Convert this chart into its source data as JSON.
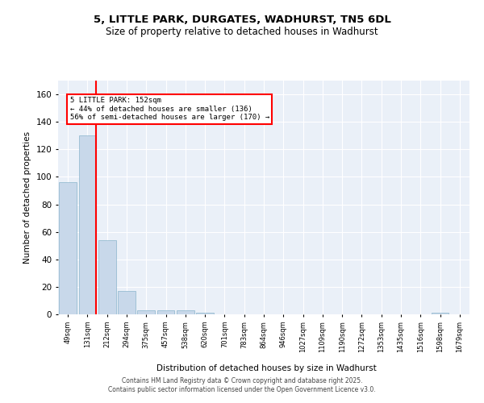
{
  "title_line1": "5, LITTLE PARK, DURGATES, WADHURST, TN5 6DL",
  "title_line2": "Size of property relative to detached houses in Wadhurst",
  "xlabel": "Distribution of detached houses by size in Wadhurst",
  "ylabel": "Number of detached properties",
  "bar_color": "#c8d8ea",
  "bar_edge_color": "#8ab4cc",
  "categories": [
    "49sqm",
    "131sqm",
    "212sqm",
    "294sqm",
    "375sqm",
    "457sqm",
    "538sqm",
    "620sqm",
    "701sqm",
    "783sqm",
    "864sqm",
    "946sqm",
    "1027sqm",
    "1109sqm",
    "1190sqm",
    "1272sqm",
    "1353sqm",
    "1435sqm",
    "1516sqm",
    "1598sqm",
    "1679sqm"
  ],
  "values": [
    96,
    130,
    54,
    17,
    3,
    3,
    3,
    1,
    0,
    0,
    0,
    0,
    0,
    0,
    0,
    0,
    0,
    0,
    0,
    1,
    0
  ],
  "ylim": [
    0,
    170
  ],
  "yticks": [
    0,
    20,
    40,
    60,
    80,
    100,
    120,
    140,
    160
  ],
  "red_line_x": 1.45,
  "annotation_text": "5 LITTLE PARK: 152sqm\n← 44% of detached houses are smaller (136)\n56% of semi-detached houses are larger (170) →",
  "bg_color": "#eaf0f8",
  "grid_color": "#ffffff",
  "footer_line1": "Contains HM Land Registry data © Crown copyright and database right 2025.",
  "footer_line2": "Contains public sector information licensed under the Open Government Licence v3.0."
}
